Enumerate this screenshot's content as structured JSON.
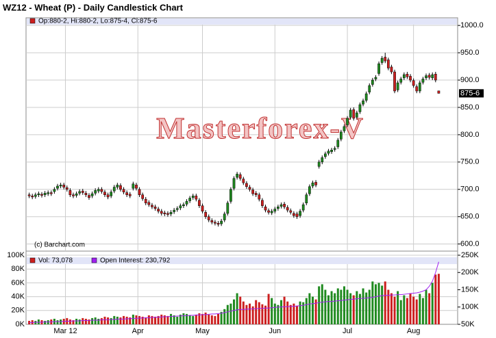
{
  "chart_data": {
    "type": "candlestick",
    "title": "WZ12 - Wheat (P) - Daily Candlestick Chart",
    "legend_text": "Op:880-2, Hi:880-2, Lo:875-4, Cl:875-6",
    "watermark": "Masterforex-V",
    "credit": "(c) Barchart.com",
    "last_label": {
      "value": 875.75,
      "label": "875-6"
    },
    "up_color": "#1f8a1f",
    "down_color": "#cc1f1f",
    "grid": true,
    "xlim": [
      -1,
      136
    ],
    "xticks": [
      {
        "value": 11.5,
        "label": "Mar 12"
      },
      {
        "value": 34.5,
        "label": "Apr"
      },
      {
        "value": 55,
        "label": "May"
      },
      {
        "value": 78,
        "label": "Jun"
      },
      {
        "value": 101,
        "label": "Jul"
      },
      {
        "value": 122,
        "label": "Aug"
      }
    ],
    "ylim": [
      587,
      1014
    ],
    "yticks": [
      {
        "value": 600,
        "label": "600.0"
      },
      {
        "value": 650,
        "label": "650.0"
      },
      {
        "value": 700,
        "label": "700.0"
      },
      {
        "value": 750,
        "label": "750.0"
      },
      {
        "value": 800,
        "label": "800.0"
      },
      {
        "value": 850,
        "label": "850.0"
      },
      {
        "value": 900,
        "label": "900.0"
      },
      {
        "value": 950,
        "label": "950.0"
      },
      {
        "value": 1000,
        "label": "1000.0"
      }
    ],
    "open": [
      690,
      688,
      687,
      690,
      691,
      690,
      692,
      694,
      696,
      702,
      706,
      708,
      703,
      698,
      690,
      689,
      693,
      697,
      693,
      689,
      688,
      693,
      697,
      700,
      695,
      690,
      688,
      697,
      704,
      707,
      700,
      694,
      691,
      702,
      708,
      700,
      690,
      682,
      676,
      671,
      668,
      664,
      660,
      657,
      656,
      655,
      659,
      663,
      666,
      670,
      673,
      679,
      685,
      688,
      680,
      670,
      658,
      650,
      643,
      640,
      638,
      637,
      644,
      656,
      678,
      702,
      722,
      727,
      719,
      711,
      704,
      699,
      693,
      690,
      680,
      668,
      661,
      657,
      660,
      665,
      669,
      673,
      667,
      661,
      656,
      655,
      652,
      662,
      675,
      692,
      706,
      713,
      742,
      750,
      760,
      766,
      769,
      773,
      778,
      792,
      807,
      818,
      832,
      846,
      832,
      842,
      856,
      863,
      878,
      892,
      902,
      912,
      932,
      942,
      937,
      924,
      915,
      882,
      896,
      904,
      911,
      907,
      899,
      888,
      880,
      896,
      904,
      909,
      904,
      911,
      880.25
    ],
    "high": [
      694,
      692,
      694,
      696,
      695,
      697,
      698,
      698,
      704,
      710,
      712,
      712,
      707,
      702,
      694,
      696,
      700,
      701,
      697,
      693,
      696,
      702,
      704,
      704,
      699,
      694,
      699,
      708,
      712,
      711,
      704,
      698,
      695,
      714,
      712,
      704,
      694,
      686,
      680,
      675,
      672,
      668,
      664,
      661,
      660,
      662,
      666,
      669,
      674,
      676,
      682,
      688,
      692,
      692,
      684,
      674,
      662,
      654,
      647,
      644,
      642,
      646,
      659,
      679,
      704,
      724,
      732,
      731,
      723,
      715,
      708,
      703,
      697,
      694,
      684,
      672,
      665,
      664,
      668,
      672,
      676,
      677,
      671,
      665,
      660,
      659,
      664,
      676,
      694,
      709,
      716,
      717,
      754,
      762,
      769,
      774,
      776,
      779,
      794,
      809,
      819,
      834,
      849,
      850,
      844,
      859,
      866,
      879,
      894,
      904,
      909,
      934,
      944,
      950,
      941,
      928,
      919,
      899,
      906,
      914,
      915,
      911,
      903,
      892,
      899,
      906,
      912,
      913,
      914,
      915,
      880.25
    ],
    "low": [
      684,
      682,
      683,
      686,
      685,
      686,
      688,
      688,
      692,
      698,
      702,
      700,
      696,
      686,
      684,
      685,
      689,
      690,
      686,
      681,
      684,
      689,
      693,
      692,
      686,
      682,
      684,
      693,
      700,
      696,
      691,
      686,
      684,
      698,
      698,
      686,
      679,
      671,
      668,
      664,
      661,
      656,
      652,
      651,
      650,
      651,
      655,
      659,
      662,
      666,
      669,
      675,
      681,
      678,
      666,
      656,
      646,
      640,
      636,
      634,
      632,
      633,
      640,
      652,
      674,
      698,
      718,
      716,
      708,
      701,
      696,
      688,
      686,
      678,
      666,
      658,
      654,
      653,
      656,
      661,
      665,
      664,
      658,
      654,
      648,
      646,
      648,
      658,
      671,
      688,
      702,
      704,
      738,
      746,
      756,
      762,
      765,
      769,
      774,
      788,
      803,
      814,
      828,
      826,
      828,
      838,
      852,
      859,
      874,
      888,
      898,
      908,
      928,
      931,
      918,
      911,
      876,
      878,
      892,
      900,
      902,
      896,
      886,
      876,
      876,
      892,
      900,
      901,
      900,
      896,
      875.5
    ],
    "close": [
      688,
      686,
      690,
      692,
      689,
      693,
      694,
      692,
      700,
      706,
      708,
      704,
      700,
      690,
      688,
      692,
      696,
      694,
      690,
      685,
      692,
      698,
      700,
      696,
      690,
      686,
      695,
      704,
      708,
      700,
      695,
      690,
      688,
      710,
      702,
      690,
      683,
      675,
      672,
      668,
      665,
      660,
      656,
      655,
      654,
      658,
      662,
      665,
      670,
      672,
      678,
      684,
      688,
      682,
      670,
      660,
      650,
      644,
      640,
      638,
      636,
      642,
      655,
      675,
      700,
      720,
      728,
      720,
      712,
      705,
      700,
      692,
      690,
      682,
      670,
      662,
      658,
      660,
      664,
      668,
      672,
      668,
      662,
      658,
      652,
      650,
      660,
      672,
      690,
      705,
      712,
      708,
      750,
      758,
      765,
      770,
      772,
      775,
      790,
      805,
      815,
      830,
      845,
      830,
      840,
      855,
      862,
      875,
      890,
      900,
      905,
      930,
      940,
      935,
      922,
      915,
      880,
      895,
      902,
      910,
      906,
      900,
      890,
      880,
      895,
      902,
      908,
      905,
      910,
      900,
      875.75
    ],
    "volume": {
      "name": "Vol: 73,078",
      "ylim": [
        0,
        100
      ],
      "yticks": [
        {
          "value": 0,
          "label": "0K"
        },
        {
          "value": 20,
          "label": "20K"
        },
        {
          "value": 40,
          "label": "40K"
        },
        {
          "value": 60,
          "label": "60K"
        },
        {
          "value": 80,
          "label": "80K"
        },
        {
          "value": 100,
          "label": "100K"
        }
      ],
      "values": [
        5,
        6,
        5,
        7,
        6,
        5,
        6,
        7,
        8,
        6,
        7,
        8,
        9,
        7,
        6,
        8,
        7,
        9,
        8,
        7,
        9,
        10,
        8,
        9,
        11,
        10,
        9,
        12,
        11,
        10,
        12,
        11,
        10,
        14,
        13,
        12,
        11,
        10,
        13,
        12,
        11,
        12,
        14,
        13,
        12,
        15,
        13,
        11,
        14,
        16,
        15,
        13,
        12,
        14,
        16,
        15,
        17,
        14,
        13,
        12,
        15,
        18,
        22,
        28,
        30,
        36,
        45,
        40,
        33,
        28,
        30,
        26,
        35,
        32,
        29,
        27,
        44,
        38,
        30,
        28,
        35,
        40,
        33,
        28,
        30,
        27,
        33,
        32,
        38,
        45,
        40,
        36,
        55,
        58,
        50,
        42,
        48,
        45,
        52,
        50,
        55,
        50,
        45,
        42,
        48,
        44,
        52,
        46,
        50,
        62,
        58,
        60,
        56,
        62,
        50,
        45,
        40,
        48,
        35,
        42,
        38,
        45,
        40,
        36,
        44,
        38,
        50,
        45,
        60,
        72,
        73.078
      ]
    },
    "open_interest": {
      "name": "Open Interest: 230,792",
      "color": "#a020f0",
      "ylim": [
        50,
        250
      ],
      "yticks": [
        {
          "value": 50,
          "label": "50K"
        },
        {
          "value": 100,
          "label": "100K"
        },
        {
          "value": 150,
          "label": "150K"
        },
        {
          "value": 200,
          "label": "200K"
        },
        {
          "value": 250,
          "label": "250K"
        }
      ],
      "values": [
        55,
        55,
        56,
        56,
        56,
        57,
        57,
        57,
        58,
        58,
        58,
        59,
        59,
        59,
        60,
        60,
        60,
        61,
        61,
        61,
        62,
        62,
        62,
        63,
        63,
        63,
        64,
        64,
        65,
        65,
        65,
        66,
        66,
        67,
        67,
        68,
        68,
        69,
        69,
        70,
        70,
        71,
        71,
        72,
        72,
        73,
        73,
        74,
        74,
        75,
        75,
        76,
        76,
        77,
        77,
        78,
        78,
        79,
        80,
        80,
        81,
        82,
        84,
        86,
        88,
        90,
        92,
        93,
        93,
        94,
        94,
        95,
        95,
        96,
        96,
        97,
        97,
        98,
        99,
        100,
        100,
        101,
        101,
        102,
        102,
        103,
        104,
        105,
        107,
        109,
        110,
        111,
        113,
        114,
        115,
        116,
        116,
        117,
        118,
        119,
        120,
        121,
        122,
        123,
        124,
        125,
        125,
        126,
        127,
        128,
        130,
        132,
        133,
        134,
        134,
        135,
        135,
        136,
        136,
        137,
        138,
        139,
        140,
        141,
        143,
        146,
        150,
        160,
        175,
        200,
        230.792
      ]
    }
  }
}
